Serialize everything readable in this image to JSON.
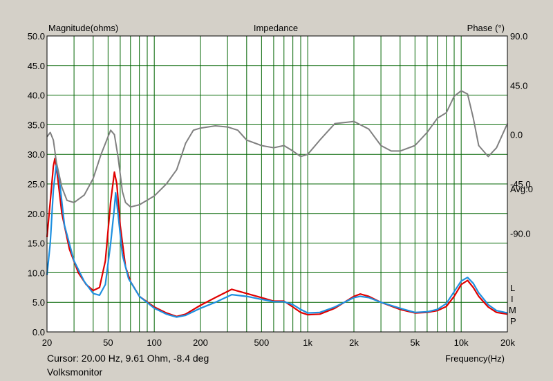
{
  "chart_data": {
    "type": "line",
    "title": "Impedance",
    "ylabel": "Magnitude(ohms)",
    "y2label": "Phase (°)",
    "xlabel": "Frequency(Hz)",
    "xscale": "log",
    "xlim": [
      20,
      20000
    ],
    "ylim": [
      0,
      50
    ],
    "y2lim": [
      -180,
      90
    ],
    "grid": true,
    "x_ticks": [
      20,
      50,
      100,
      200,
      500,
      1000,
      2000,
      5000,
      10000,
      20000
    ],
    "x_tick_labels": [
      "20",
      "50",
      "100",
      "200",
      "500",
      "1k",
      "2k",
      "5k",
      "10k",
      "20k"
    ],
    "y_ticks": [
      0,
      5,
      10,
      15,
      20,
      25,
      30,
      35,
      40,
      45,
      50
    ],
    "y_tick_labels": [
      "0.0",
      "5.0",
      "10.0",
      "15.0",
      "20.0",
      "25.0",
      "30.0",
      "35.0",
      "40.0",
      "45.0",
      "50.0"
    ],
    "y2_ticks": [
      90,
      45,
      0,
      -45,
      -90
    ],
    "y2_tick_labels": [
      "90.0",
      "45.0",
      "0.0",
      "-45.0",
      "-90.0"
    ],
    "avg_label": "Avg:0",
    "legend_letters": [
      "L",
      "I",
      "M",
      "P"
    ],
    "series": [
      {
        "color": "#e00000",
        "points": [
          [
            20,
            16
          ],
          [
            21,
            22
          ],
          [
            22,
            28
          ],
          [
            22.5,
            29.3
          ],
          [
            23,
            28
          ],
          [
            25,
            20
          ],
          [
            28,
            14
          ],
          [
            32,
            10
          ],
          [
            36,
            8
          ],
          [
            40,
            7
          ],
          [
            44,
            7.5
          ],
          [
            48,
            12
          ],
          [
            52,
            22
          ],
          [
            55,
            27
          ],
          [
            57,
            25
          ],
          [
            60,
            18
          ],
          [
            65,
            11
          ],
          [
            70,
            8.5
          ],
          [
            80,
            6
          ],
          [
            100,
            4.2
          ],
          [
            120,
            3.2
          ],
          [
            140,
            2.6
          ],
          [
            160,
            3
          ],
          [
            200,
            4.5
          ],
          [
            250,
            5.8
          ],
          [
            320,
            7.2
          ],
          [
            400,
            6.5
          ],
          [
            500,
            5.8
          ],
          [
            600,
            5.2
          ],
          [
            700,
            5.2
          ],
          [
            800,
            4.2
          ],
          [
            900,
            3.3
          ],
          [
            1000,
            2.9
          ],
          [
            1200,
            3
          ],
          [
            1500,
            4
          ],
          [
            2000,
            6
          ],
          [
            2200,
            6.4
          ],
          [
            2500,
            6
          ],
          [
            3000,
            5
          ],
          [
            4000,
            3.8
          ],
          [
            5000,
            3.2
          ],
          [
            6000,
            3.3
          ],
          [
            7000,
            3.6
          ],
          [
            8000,
            4.3
          ],
          [
            9000,
            6
          ],
          [
            10000,
            8
          ],
          [
            11000,
            8.7
          ],
          [
            12000,
            7.5
          ],
          [
            13000,
            6
          ],
          [
            15000,
            4.2
          ],
          [
            17000,
            3.3
          ],
          [
            20000,
            3
          ]
        ]
      },
      {
        "color": "#1e90e0",
        "points": [
          [
            20,
            9.6
          ],
          [
            21,
            15
          ],
          [
            22,
            24
          ],
          [
            23,
            28.2
          ],
          [
            24,
            26
          ],
          [
            26,
            18
          ],
          [
            30,
            12
          ],
          [
            35,
            8.5
          ],
          [
            40,
            6.5
          ],
          [
            44,
            6.2
          ],
          [
            48,
            8
          ],
          [
            52,
            15
          ],
          [
            55,
            21
          ],
          [
            56,
            23.5
          ],
          [
            58,
            20
          ],
          [
            62,
            13
          ],
          [
            68,
            9
          ],
          [
            80,
            6
          ],
          [
            100,
            4
          ],
          [
            120,
            3
          ],
          [
            140,
            2.5
          ],
          [
            160,
            2.8
          ],
          [
            200,
            4
          ],
          [
            250,
            5
          ],
          [
            320,
            6.3
          ],
          [
            400,
            6
          ],
          [
            500,
            5.5
          ],
          [
            600,
            5.1
          ],
          [
            700,
            5.1
          ],
          [
            800,
            4.6
          ],
          [
            900,
            3.8
          ],
          [
            1000,
            3.2
          ],
          [
            1200,
            3.3
          ],
          [
            1500,
            4.2
          ],
          [
            2000,
            5.8
          ],
          [
            2200,
            6
          ],
          [
            2500,
            5.8
          ],
          [
            3000,
            5
          ],
          [
            4000,
            4
          ],
          [
            5000,
            3.3
          ],
          [
            6000,
            3.4
          ],
          [
            7000,
            3.8
          ],
          [
            8000,
            4.8
          ],
          [
            9000,
            6.8
          ],
          [
            10000,
            8.6
          ],
          [
            11000,
            9.2
          ],
          [
            12000,
            8.2
          ],
          [
            13000,
            6.6
          ],
          [
            15000,
            4.6
          ],
          [
            17000,
            3.6
          ],
          [
            20000,
            3.2
          ]
        ]
      },
      {
        "color": "#808080",
        "axis": "phase",
        "points": [
          [
            20,
            -2
          ],
          [
            21,
            2
          ],
          [
            22,
            -5
          ],
          [
            23,
            -25
          ],
          [
            25,
            -48
          ],
          [
            27,
            -60
          ],
          [
            30,
            -62
          ],
          [
            35,
            -55
          ],
          [
            40,
            -40
          ],
          [
            45,
            -18
          ],
          [
            50,
            -2
          ],
          [
            52,
            4
          ],
          [
            55,
            0
          ],
          [
            58,
            -20
          ],
          [
            62,
            -52
          ],
          [
            65,
            -62
          ],
          [
            70,
            -66
          ],
          [
            80,
            -64
          ],
          [
            100,
            -56
          ],
          [
            120,
            -45
          ],
          [
            140,
            -32
          ],
          [
            160,
            -8
          ],
          [
            180,
            4
          ],
          [
            200,
            6
          ],
          [
            250,
            8
          ],
          [
            300,
            7
          ],
          [
            350,
            4
          ],
          [
            400,
            -5
          ],
          [
            500,
            -10
          ],
          [
            600,
            -12
          ],
          [
            700,
            -10
          ],
          [
            800,
            -15
          ],
          [
            900,
            -20
          ],
          [
            1000,
            -18
          ],
          [
            1200,
            -5
          ],
          [
            1500,
            10
          ],
          [
            2000,
            12
          ],
          [
            2500,
            5
          ],
          [
            3000,
            -10
          ],
          [
            3500,
            -15
          ],
          [
            4000,
            -15
          ],
          [
            5000,
            -10
          ],
          [
            6000,
            2
          ],
          [
            7000,
            15
          ],
          [
            8000,
            20
          ],
          [
            9000,
            35
          ],
          [
            10000,
            40
          ],
          [
            11000,
            37
          ],
          [
            12000,
            15
          ],
          [
            13000,
            -10
          ],
          [
            15000,
            -20
          ],
          [
            17000,
            -12
          ],
          [
            20000,
            10
          ]
        ]
      }
    ]
  },
  "status": {
    "cursor": "Cursor: 20.00 Hz, 9.61 Ohm, -8.4 deg",
    "app": "Volksmonitor"
  }
}
